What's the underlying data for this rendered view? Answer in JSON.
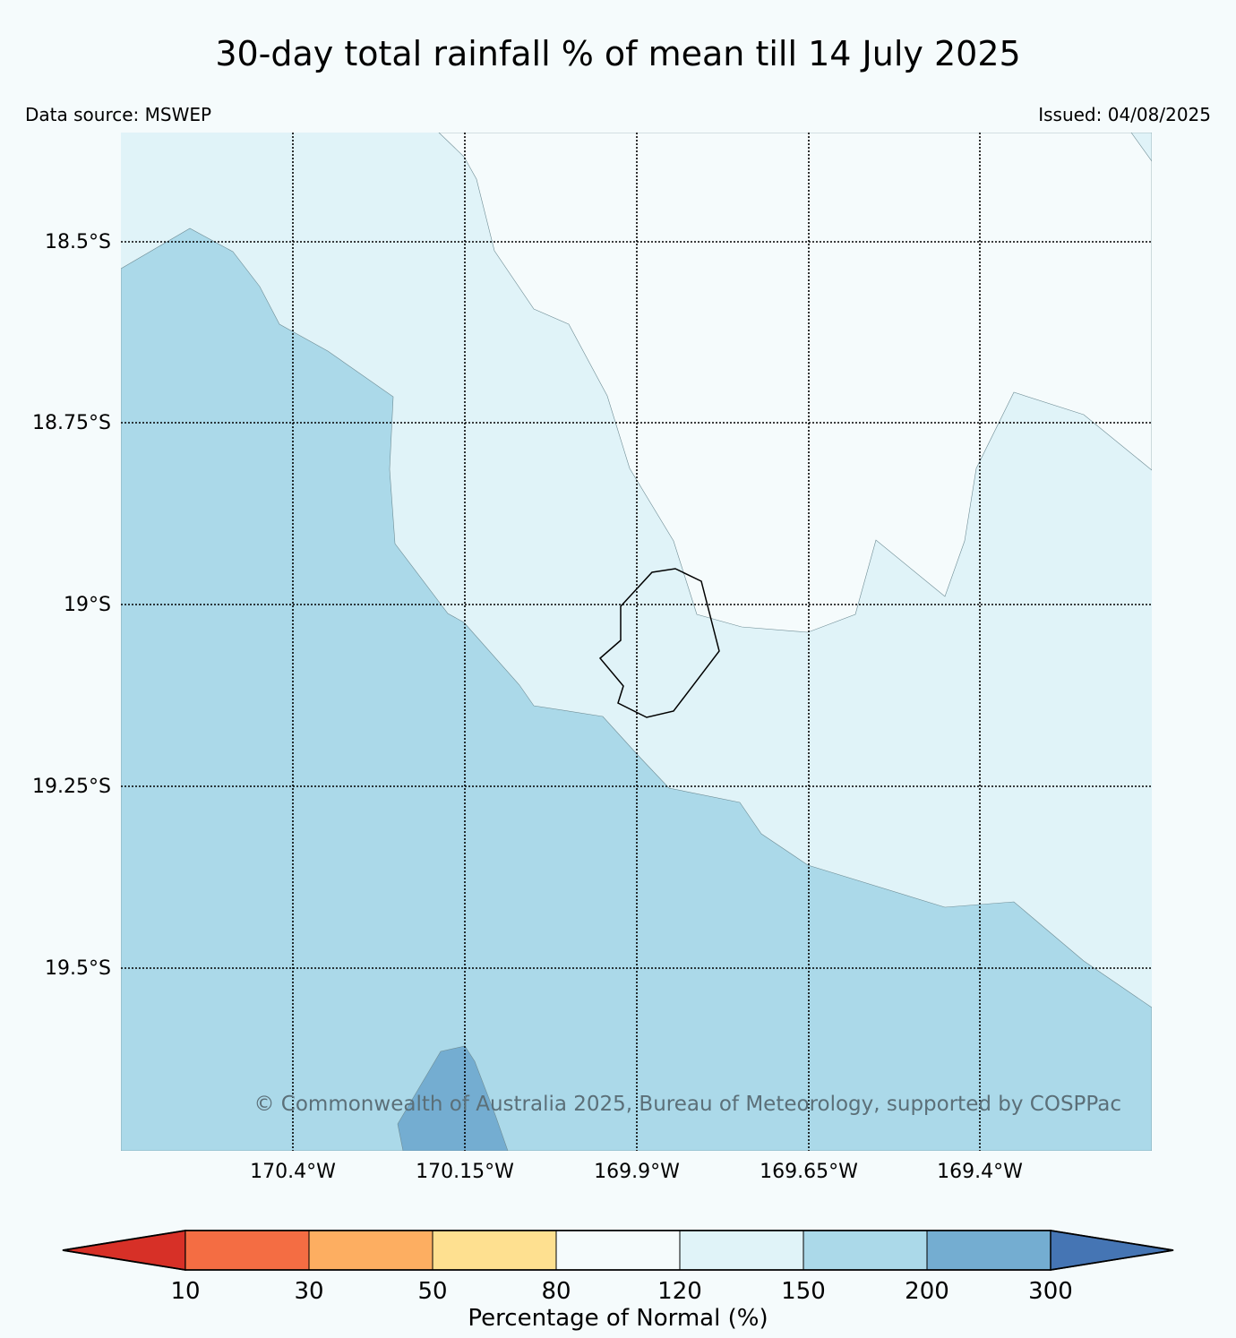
{
  "title": "30-day total rainfall % of mean till 14 July 2025",
  "data_source": "Data source: MSWEP",
  "issued": "Issued: 04/08/2025",
  "copyright": "© Commonwealth of Australia 2025, Bureau of Meteorology, supported by COSPPac",
  "lat_labels": [
    "18.5°S",
    "18.75°S",
    "19°S",
    "19.25°S",
    "19.5°S"
  ],
  "lon_labels": [
    "170.4°W",
    "170.15°W",
    "169.9°W",
    "169.65°W",
    "169.4°W"
  ],
  "colorbar": {
    "title": "Percentage of Normal (%)",
    "ticks": [
      "10",
      "30",
      "50",
      "80",
      "120",
      "150",
      "200",
      "300"
    ],
    "colors": [
      "#d73027",
      "#f46d43",
      "#fdae61",
      "#fee090",
      "#f5fbfc",
      "#e0f3f8",
      "#abd9e9",
      "#74add1",
      "#4575b4"
    ]
  },
  "regions": {
    "150_200_color": "#abd9e9",
    "120_150_color": "#e0f3f8",
    "200_300_color": "#74add1",
    "80_120_color": "#f5fbfc"
  }
}
